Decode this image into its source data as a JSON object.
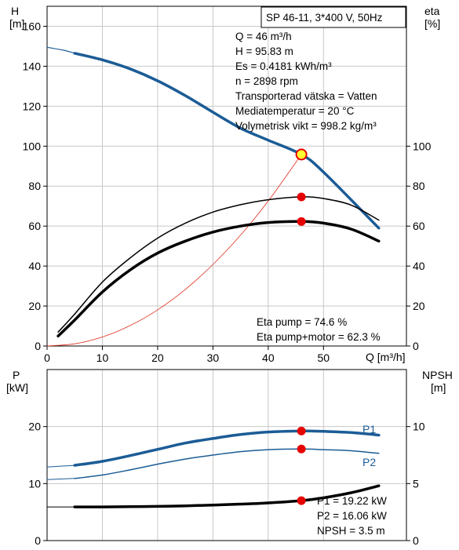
{
  "chart_data": [
    {
      "type": "line",
      "title": "SP 46-11, 3*400 V, 50Hz",
      "xlabel": "Q [m³/h]",
      "ylabel_left": [
        "H",
        "[m]"
      ],
      "ylabel_right": [
        "eta",
        "[%]"
      ],
      "xlim": [
        0,
        65
      ],
      "xticks": [
        0,
        10,
        20,
        30,
        40,
        50
      ],
      "ylim_left": [
        0,
        170
      ],
      "yticks_left": [
        0,
        20,
        40,
        60,
        80,
        100,
        120,
        140,
        160
      ],
      "ylim_right": [
        0,
        170
      ],
      "yticks_right": [
        0,
        20,
        40,
        60,
        80,
        100
      ],
      "grid": true,
      "colors": {
        "head": "#1b5c96",
        "system": "#e03020",
        "eta": "#000000",
        "marker": "#e60000",
        "duty_fill": "#ffff33"
      },
      "info": [
        "Q = 46 m³/h",
        "H = 95.83 m",
        "Es = 0.4181 kWh/m³",
        "n = 2898 rpm",
        "Transporterad vätska = Vatten",
        "Mediatemperatur = 20 °C",
        "Volymetrisk vikt = 998.2 kg/m³"
      ],
      "annotations": [
        "Eta pump = 74.6 %",
        "Eta pump+motor = 62.3 %"
      ],
      "series": [
        {
          "role": "head_extrapolated",
          "x": [
            0,
            3,
            5
          ],
          "y": [
            149.5,
            148.0,
            146.5
          ]
        },
        {
          "role": "head",
          "x": [
            5,
            10,
            15,
            20,
            25,
            30,
            35,
            40,
            46,
            50,
            60
          ],
          "y": [
            146.5,
            143.2,
            138.7,
            132.7,
            125.3,
            117.0,
            109.0,
            103.0,
            95.83,
            87.0,
            59.0
          ]
        },
        {
          "role": "system",
          "x": [
            0,
            5,
            10,
            15,
            20,
            25,
            30,
            35,
            40,
            46
          ],
          "y": [
            0,
            1.1,
            4.5,
            10.2,
            18.1,
            28.3,
            40.8,
            55.5,
            72.5,
            95.83
          ]
        },
        {
          "role": "eta_pump",
          "x": [
            2,
            5,
            10,
            15,
            20,
            25,
            30,
            35,
            40,
            46,
            50,
            55,
            60
          ],
          "y": [
            7,
            16,
            32,
            44,
            54,
            61.5,
            67,
            70.7,
            73.2,
            74.6,
            73.8,
            70.5,
            63
          ]
        },
        {
          "role": "eta_pump_motor",
          "x": [
            2,
            5,
            10,
            15,
            20,
            25,
            30,
            35,
            40,
            46,
            50,
            55,
            60
          ],
          "y": [
            5,
            13,
            27,
            38,
            46.5,
            52.5,
            57,
            60,
            61.8,
            62.3,
            61.5,
            58.5,
            52.5
          ]
        }
      ],
      "points": [
        {
          "role": "duty_point",
          "x": 46,
          "y": 95.83
        },
        {
          "role": "eta_pump_point",
          "x": 46,
          "y": 74.6
        },
        {
          "role": "eta_motor_point",
          "x": 46,
          "y": 62.3
        }
      ]
    },
    {
      "type": "line",
      "ylabel_left": [
        "P",
        "[kW]"
      ],
      "ylabel_right": [
        "NPSH",
        "[m]"
      ],
      "xlim": [
        0,
        65
      ],
      "xticks": [
        0,
        10,
        20,
        30,
        40,
        50
      ],
      "ylim_left": [
        0,
        30
      ],
      "yticks_left": [
        0,
        10,
        20
      ],
      "ylim_right": [
        0,
        15
      ],
      "yticks_right": [
        0,
        5,
        10
      ],
      "grid": true,
      "colors": {
        "power": "#1b5c96",
        "npsh": "#000000",
        "marker": "#e60000"
      },
      "annotations": [
        "P1 = 19.22 kW",
        "P2 = 16.06 kW",
        "NPSH = 3.5 m"
      ],
      "series": [
        {
          "name": "P1",
          "axis": "left",
          "x": [
            5,
            10,
            15,
            20,
            25,
            30,
            35,
            40,
            46,
            50,
            55,
            60
          ],
          "y": [
            13.2,
            13.9,
            14.9,
            16.0,
            17.1,
            17.9,
            18.6,
            19.05,
            19.22,
            19.15,
            18.95,
            18.5
          ]
        },
        {
          "role": "P1_extrapolated",
          "axis": "left",
          "x": [
            0,
            5
          ],
          "y": [
            12.9,
            13.2
          ]
        },
        {
          "name": "P2",
          "axis": "left",
          "x": [
            5,
            10,
            15,
            20,
            25,
            30,
            35,
            40,
            46,
            50,
            55,
            60
          ],
          "y": [
            10.9,
            11.5,
            12.4,
            13.4,
            14.3,
            15.0,
            15.6,
            15.95,
            16.06,
            15.95,
            15.75,
            15.3
          ]
        },
        {
          "role": "P2_extrapolated",
          "axis": "left",
          "x": [
            0,
            5
          ],
          "y": [
            10.7,
            10.9
          ]
        },
        {
          "role": "npsh",
          "axis": "right",
          "x": [
            5,
            10,
            15,
            20,
            25,
            30,
            35,
            40,
            46,
            50,
            55,
            60
          ],
          "y": [
            2.95,
            2.95,
            2.97,
            3.0,
            3.05,
            3.12,
            3.2,
            3.3,
            3.5,
            3.75,
            4.2,
            4.8
          ]
        },
        {
          "role": "npsh_extrapolated",
          "axis": "right",
          "x": [
            0,
            5
          ],
          "y": [
            2.95,
            2.95
          ]
        }
      ],
      "points": [
        {
          "role": "P1_point",
          "axis": "left",
          "x": 46,
          "y": 19.22
        },
        {
          "role": "P2_point",
          "axis": "left",
          "x": 46,
          "y": 16.06
        },
        {
          "role": "npsh_point",
          "axis": "right",
          "x": 46,
          "y": 3.5
        }
      ]
    }
  ]
}
